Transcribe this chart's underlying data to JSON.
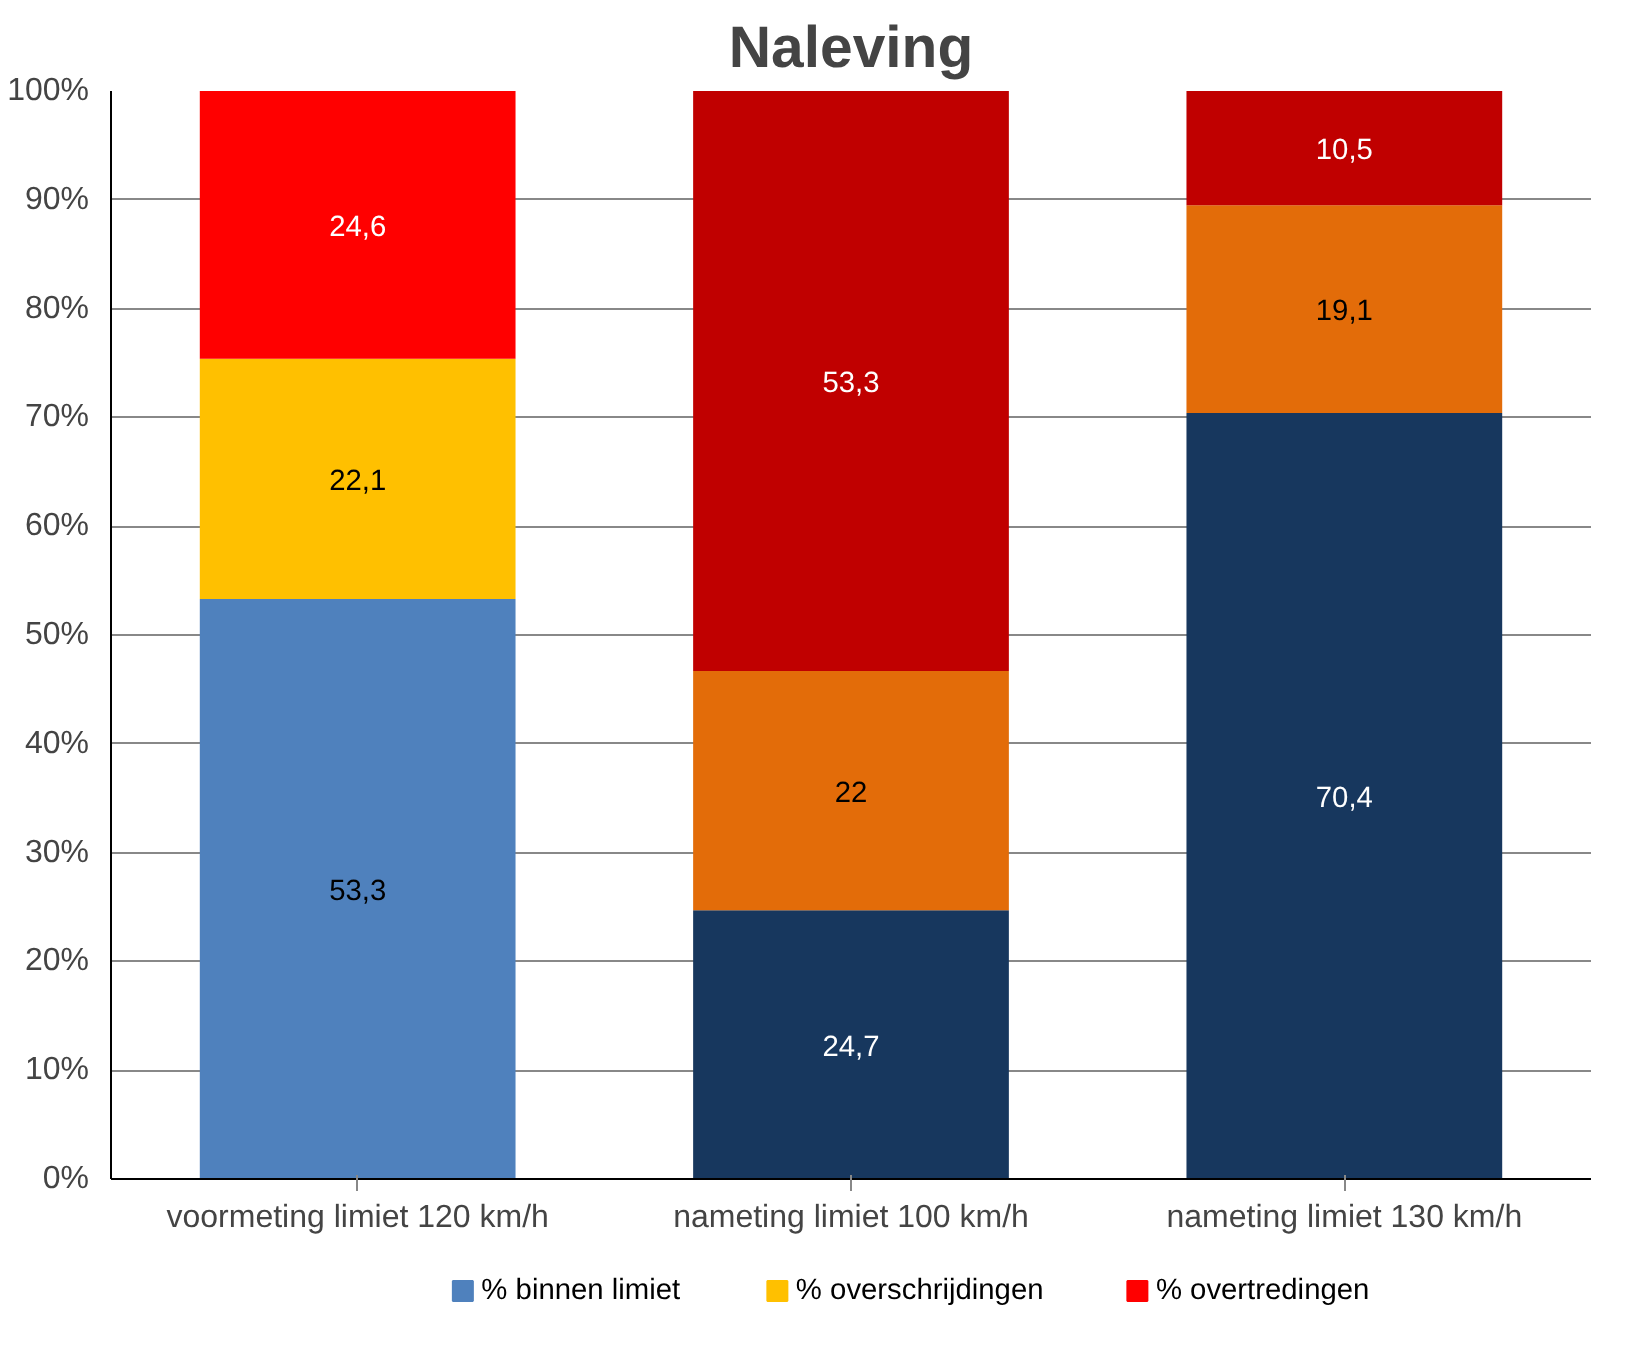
{
  "chart_data": {
    "type": "bar",
    "title": "Naleving",
    "stacked": true,
    "categories": [
      "voormeting limiet 120 km/h",
      "nameting limiet 100 km/h",
      "nameting limiet 130 km/h"
    ],
    "series": [
      {
        "name": "% binnen limiet",
        "color": "#4f81bd",
        "colors": [
          "#4f81bd",
          "#17375e",
          "#17375e"
        ],
        "values": [
          53.3,
          24.7,
          70.4
        ],
        "value_labels": [
          "53,3",
          "24,7",
          "70,4"
        ]
      },
      {
        "name": "% overschrijdingen",
        "color": "#ffc000",
        "colors": [
          "#ffc000",
          "#e36c09",
          "#e36c09"
        ],
        "values": [
          22.1,
          22,
          19.1
        ],
        "value_labels": [
          "22,1",
          "22",
          "19,1"
        ]
      },
      {
        "name": "% overtredingen",
        "color": "#ff0000",
        "colors": [
          "#ff0000",
          "#c00000",
          "#c00000"
        ],
        "values": [
          24.6,
          53.3,
          10.5
        ],
        "value_labels": [
          "24,6",
          "53,3",
          "10,5"
        ]
      }
    ],
    "ylim": [
      0,
      100
    ],
    "yticks": [
      {
        "value": 0,
        "label": "0%"
      },
      {
        "value": 10,
        "label": "10%"
      },
      {
        "value": 20,
        "label": "20%"
      },
      {
        "value": 30,
        "label": "30%"
      },
      {
        "value": 40,
        "label": "40%"
      },
      {
        "value": 50,
        "label": "50%"
      },
      {
        "value": 60,
        "label": "60%"
      },
      {
        "value": 70,
        "label": "70%"
      },
      {
        "value": 80,
        "label": "80%"
      },
      {
        "value": 90,
        "label": "90%"
      },
      {
        "value": 100,
        "label": "100%"
      }
    ],
    "grid": "y",
    "legend": "bottom"
  }
}
